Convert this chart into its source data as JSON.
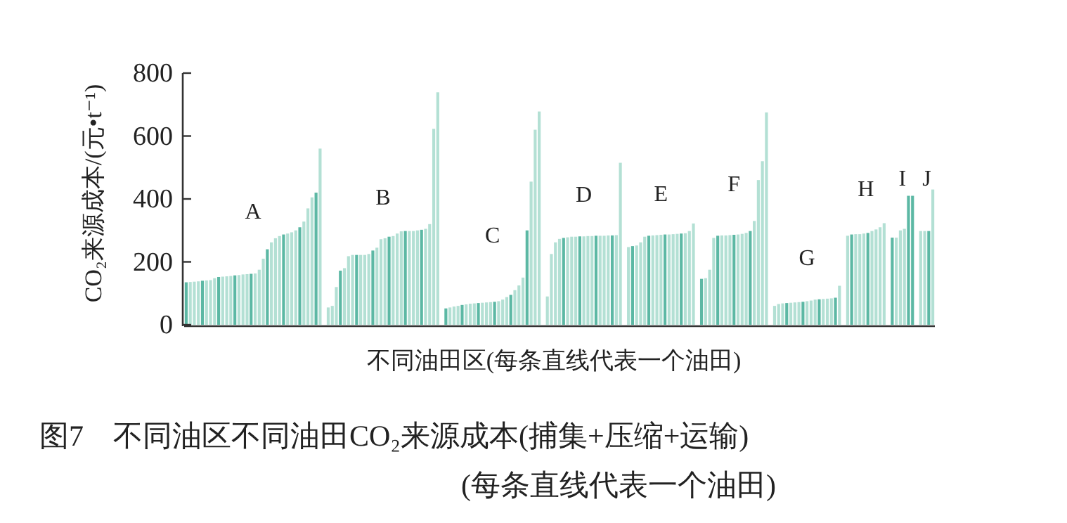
{
  "chart_data": {
    "type": "bar",
    "title": "图7　不同油区不同油田CO₂来源成本(捕集+压缩+运输)",
    "subtitle": "(每条直线代表一个油田)",
    "xlabel": "不同油田区(每条直线代表一个油田)",
    "ylabel": "CO₂来源成本/(元•t⁻¹)",
    "ylim": [
      0,
      800
    ],
    "yticks": [
      0,
      200,
      400,
      600,
      800
    ],
    "grid": false,
    "annotations": [
      "A",
      "B",
      "C",
      "D",
      "E",
      "F",
      "G",
      "H",
      "I",
      "J"
    ],
    "categories": [
      null,
      null,
      null,
      null,
      null,
      null,
      null,
      null,
      null,
      null,
      null,
      null,
      null,
      null,
      null,
      null,
      null,
      null,
      null,
      null,
      null,
      null,
      null,
      null,
      null,
      null,
      null,
      null,
      null,
      null,
      null,
      null,
      null,
      null,
      null,
      null,
      null,
      null,
      null,
      null,
      null,
      null,
      null,
      null,
      null,
      null,
      null,
      null,
      null,
      null,
      null,
      null,
      null,
      null,
      null,
      null,
      null,
      null,
      null,
      null,
      null,
      null,
      null,
      null,
      null,
      null,
      null,
      null,
      null,
      null,
      null,
      null,
      null,
      null,
      null,
      null,
      null,
      null,
      null,
      null,
      null,
      null,
      null,
      null,
      null,
      null,
      null,
      null,
      null,
      null,
      null,
      null,
      null,
      null,
      null,
      null,
      null,
      null,
      null,
      null,
      null,
      null,
      null,
      null,
      null,
      null,
      null,
      null,
      null,
      null,
      null,
      null,
      null,
      null,
      null,
      null,
      null,
      null,
      null,
      null,
      null,
      null,
      null,
      null,
      null,
      null,
      null,
      null,
      null,
      null,
      null,
      null,
      null,
      null,
      null,
      null,
      null,
      null,
      null,
      null,
      null,
      null,
      null,
      null,
      null,
      null,
      null,
      null,
      null,
      null,
      null,
      null,
      null,
      null,
      null,
      null,
      null,
      null,
      null,
      null,
      null,
      null,
      null,
      null,
      null,
      null,
      null,
      null,
      null,
      null,
      null,
      null,
      null,
      null,
      null,
      null,
      null,
      null,
      null,
      null,
      null,
      null,
      null,
      null,
      null
    ],
    "values": [
      135,
      136,
      137,
      138,
      140,
      141,
      142,
      148,
      152,
      153,
      154,
      155,
      157,
      158,
      160,
      161,
      162,
      163,
      175,
      210,
      240,
      262,
      275,
      282,
      287,
      290,
      294,
      300,
      310,
      328,
      370,
      405,
      420,
      560,
      null,
      55,
      60,
      120,
      172,
      180,
      218,
      222,
      222,
      222,
      222,
      225,
      236,
      245,
      272,
      275,
      280,
      282,
      290,
      297,
      298,
      298,
      298,
      300,
      302,
      305,
      320,
      623,
      739,
      null,
      52,
      55,
      58,
      60,
      63,
      65,
      67,
      68,
      69,
      70,
      71,
      72,
      73,
      75,
      80,
      88,
      95,
      110,
      125,
      150,
      300,
      455,
      620,
      678,
      null,
      90,
      225,
      262,
      273,
      276,
      278,
      280,
      280,
      281,
      281,
      282,
      282,
      283,
      283,
      283,
      284,
      284,
      285,
      515,
      null,
      247,
      250,
      252,
      262,
      280,
      283,
      284,
      285,
      286,
      287,
      287,
      288,
      289,
      290,
      291,
      298,
      322,
      null,
      146,
      148,
      175,
      276,
      283,
      284,
      284,
      285,
      286,
      287,
      289,
      292,
      298,
      330,
      460,
      520,
      675,
      null,
      60,
      66,
      68,
      69,
      70,
      71,
      72,
      73,
      75,
      77,
      80,
      81,
      82,
      83,
      84,
      86,
      124,
      null,
      283,
      287,
      288,
      288,
      290,
      292,
      298,
      303,
      310,
      323,
      null,
      277,
      277,
      300,
      305,
      410,
      410,
      null,
      298,
      298,
      298,
      430
    ],
    "colors": [
      "#5cb8a4",
      "#b3e0d4",
      "#b3e0d4",
      "#b3e0d4",
      "#5cb8a4",
      "#b3e0d4",
      "#b3e0d4",
      "#b3e0d4",
      "#5cb8a4",
      "#b3e0d4",
      "#b3e0d4",
      "#b3e0d4",
      "#5cb8a4",
      "#b3e0d4",
      "#b3e0d4",
      "#b3e0d4",
      "#5cb8a4",
      "#b3e0d4",
      "#b3e0d4",
      "#b3e0d4",
      "#5cb8a4",
      "#b3e0d4",
      "#b3e0d4",
      "#b3e0d4",
      "#5cb8a4",
      "#b3e0d4",
      "#b3e0d4",
      "#b3e0d4",
      "#5cb8a4",
      "#b3e0d4",
      "#b3e0d4",
      "#b3e0d4",
      "#5cb8a4",
      "#b3e0d4",
      null,
      "#b3e0d4",
      "#b3e0d4",
      "#b3e0d4",
      "#5cb8a4",
      "#b3e0d4",
      "#b3e0d4",
      "#b3e0d4",
      "#5cb8a4",
      "#b3e0d4",
      "#b3e0d4",
      "#b3e0d4",
      "#5cb8a4",
      "#b3e0d4",
      "#b3e0d4",
      "#b3e0d4",
      "#5cb8a4",
      "#b3e0d4",
      "#b3e0d4",
      "#b3e0d4",
      "#5cb8a4",
      "#b3e0d4",
      "#b3e0d4",
      "#b3e0d4",
      "#5cb8a4",
      "#b3e0d4",
      "#b3e0d4",
      "#b3e0d4",
      "#b3e0d4",
      null,
      "#5cb8a4",
      "#b3e0d4",
      "#b3e0d4",
      "#b3e0d4",
      "#5cb8a4",
      "#b3e0d4",
      "#b3e0d4",
      "#b3e0d4",
      "#5cb8a4",
      "#b3e0d4",
      "#b3e0d4",
      "#b3e0d4",
      "#5cb8a4",
      "#b3e0d4",
      "#b3e0d4",
      "#b3e0d4",
      "#5cb8a4",
      "#b3e0d4",
      "#b3e0d4",
      "#b3e0d4",
      "#5cb8a4",
      "#b3e0d4",
      "#b3e0d4",
      "#b3e0d4",
      null,
      "#b3e0d4",
      "#b3e0d4",
      "#b3e0d4",
      "#b3e0d4",
      "#5cb8a4",
      "#b3e0d4",
      "#b3e0d4",
      "#b3e0d4",
      "#5cb8a4",
      "#b3e0d4",
      "#b3e0d4",
      "#b3e0d4",
      "#5cb8a4",
      "#b3e0d4",
      "#b3e0d4",
      "#b3e0d4",
      "#5cb8a4",
      "#b3e0d4",
      "#b3e0d4",
      null,
      "#b3e0d4",
      "#5cb8a4",
      "#b3e0d4",
      "#b3e0d4",
      "#b3e0d4",
      "#5cb8a4",
      "#b3e0d4",
      "#b3e0d4",
      "#b3e0d4",
      "#5cb8a4",
      "#b3e0d4",
      "#b3e0d4",
      "#b3e0d4",
      "#5cb8a4",
      "#b3e0d4",
      "#b3e0d4",
      "#b3e0d4",
      null,
      "#5cb8a4",
      "#b3e0d4",
      "#b3e0d4",
      "#b3e0d4",
      "#5cb8a4",
      "#b3e0d4",
      "#b3e0d4",
      "#b3e0d4",
      "#5cb8a4",
      "#b3e0d4",
      "#b3e0d4",
      "#b3e0d4",
      "#5cb8a4",
      "#b3e0d4",
      "#b3e0d4",
      "#b3e0d4",
      "#b3e0d4",
      null,
      "#b3e0d4",
      "#b3e0d4",
      "#b3e0d4",
      "#5cb8a4",
      "#b3e0d4",
      "#b3e0d4",
      "#b3e0d4",
      "#5cb8a4",
      "#b3e0d4",
      "#b3e0d4",
      "#b3e0d4",
      "#5cb8a4",
      "#b3e0d4",
      "#b3e0d4",
      "#b3e0d4",
      "#5cb8a4",
      "#b3e0d4",
      null,
      "#b3e0d4",
      "#5cb8a4",
      "#b3e0d4",
      "#b3e0d4",
      "#b3e0d4",
      "#5cb8a4",
      "#b3e0d4",
      "#b3e0d4",
      "#b3e0d4",
      "#b3e0d4",
      null,
      "#5cb8a4",
      "#b3e0d4",
      "#b3e0d4",
      "#b3e0d4",
      "#5cb8a4",
      "#5cb8a4",
      null,
      "#b3e0d4",
      "#b3e0d4",
      "#5cb8a4",
      "#b3e0d4"
    ]
  }
}
